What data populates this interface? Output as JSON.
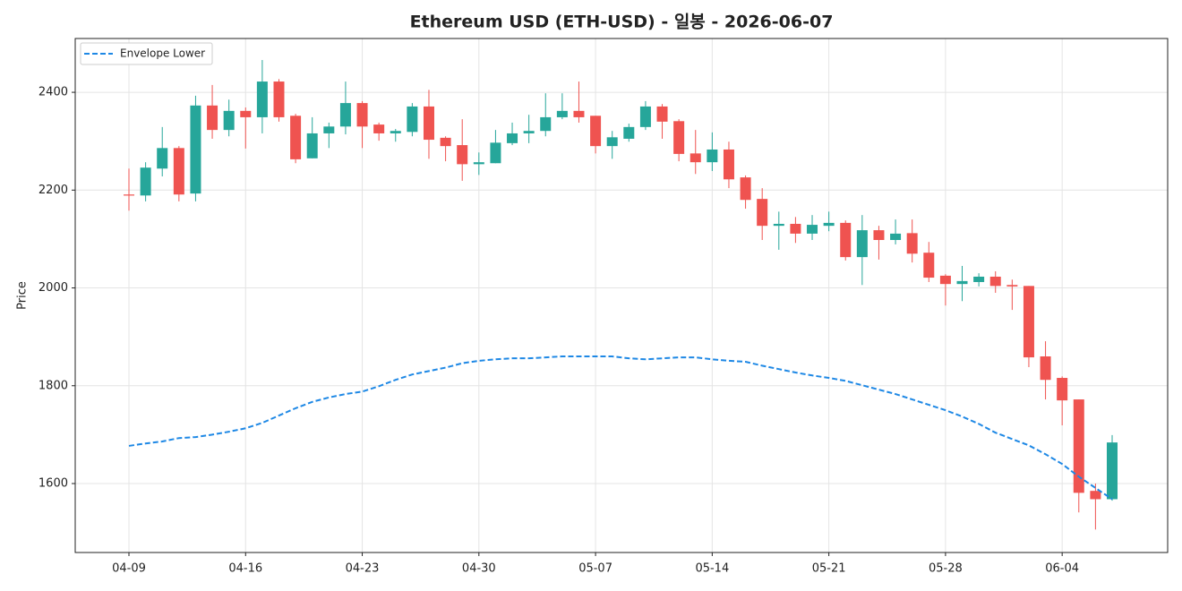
{
  "chart_data": {
    "type": "candlestick",
    "title": "Ethereum USD (ETH-USD) - 일봉 - 2026-06-07",
    "y_label": "Price",
    "categories": [
      "04-09",
      "04-10",
      "04-11",
      "04-12",
      "04-13",
      "04-14",
      "04-15",
      "04-16",
      "04-17",
      "04-18",
      "04-19",
      "04-20",
      "04-21",
      "04-22",
      "04-23",
      "04-24",
      "04-25",
      "04-26",
      "04-27",
      "04-28",
      "04-29",
      "04-30",
      "05-01",
      "05-02",
      "05-03",
      "05-04",
      "05-05",
      "05-06",
      "05-07",
      "05-08",
      "05-09",
      "05-10",
      "05-11",
      "05-12",
      "05-13",
      "05-14",
      "05-15",
      "05-16",
      "05-17",
      "05-18",
      "05-19",
      "05-20",
      "05-21",
      "05-22",
      "05-23",
      "05-24",
      "05-25",
      "05-26",
      "05-27",
      "05-28",
      "05-29",
      "05-30",
      "05-31",
      "06-01",
      "06-02",
      "06-03",
      "06-04",
      "06-05",
      "06-06",
      "06-07"
    ],
    "open": [
      2191,
      2189,
      2244,
      2286,
      2193,
      2373,
      2323,
      2362,
      2349,
      2422,
      2352,
      2265,
      2316,
      2330,
      2378,
      2334,
      2316,
      2319,
      2371,
      2307,
      2292,
      2253,
      2255,
      2296,
      2316,
      2321,
      2349,
      2362,
      2352,
      2290,
      2305,
      2329,
      2371,
      2341,
      2275,
      2257,
      2283,
      2226,
      2182,
      2127,
      2131,
      2111,
      2127,
      2133,
      2063,
      2118,
      2098,
      2112,
      2072,
      2025,
      2008,
      2012,
      2023,
      2006,
      2004,
      1860,
      1816,
      1772,
      1585,
      1568
    ],
    "high": [
      2244,
      2257,
      2329,
      2290,
      2393,
      2415,
      2385,
      2369,
      2466,
      2427,
      2356,
      2349,
      2338,
      2422,
      2382,
      2338,
      2325,
      2378,
      2405,
      2310,
      2345,
      2277,
      2323,
      2338,
      2354,
      2398,
      2398,
      2422,
      2352,
      2321,
      2336,
      2382,
      2376,
      2345,
      2323,
      2318,
      2299,
      2230,
      2204,
      2156,
      2145,
      2149,
      2156,
      2138,
      2149,
      2127,
      2140,
      2140,
      2094,
      2028,
      2045,
      2030,
      2034,
      2017,
      2004,
      1891,
      1819,
      1772,
      1600,
      1699
    ],
    "low": [
      2158,
      2177,
      2228,
      2177,
      2177,
      2305,
      2310,
      2285,
      2316,
      2340,
      2255,
      2265,
      2286,
      2314,
      2286,
      2301,
      2299,
      2310,
      2264,
      2259,
      2219,
      2231,
      2255,
      2292,
      2296,
      2310,
      2345,
      2338,
      2275,
      2264,
      2299,
      2323,
      2305,
      2259,
      2233,
      2239,
      2204,
      2162,
      2098,
      2078,
      2092,
      2098,
      2116,
      2056,
      2006,
      2058,
      2089,
      2052,
      2012,
      1964,
      1973,
      2003,
      1990,
      1955,
      1838,
      1772,
      1719,
      1541,
      1506,
      1565
    ],
    "close": [
      2189,
      2246,
      2286,
      2191,
      2373,
      2323,
      2362,
      2349,
      2422,
      2349,
      2263,
      2316,
      2330,
      2378,
      2330,
      2316,
      2321,
      2371,
      2303,
      2290,
      2253,
      2257,
      2297,
      2316,
      2321,
      2349,
      2362,
      2349,
      2290,
      2308,
      2329,
      2371,
      2340,
      2274,
      2257,
      2283,
      2222,
      2180,
      2127,
      2131,
      2111,
      2129,
      2133,
      2063,
      2118,
      2098,
      2111,
      2070,
      2021,
      2008,
      2014,
      2023,
      2004,
      2003,
      1858,
      1812,
      1770,
      1581,
      1568,
      1684
    ],
    "up_color": "#26a69a",
    "down_color": "#ef5350",
    "series": [
      {
        "name": "Envelope Lower",
        "color": "#1e88e5",
        "dashed": true,
        "values": [
          1677,
          1682,
          1686,
          1693,
          1695,
          1700,
          1706,
          1713,
          1724,
          1739,
          1754,
          1767,
          1776,
          1783,
          1788,
          1799,
          1812,
          1823,
          1830,
          1837,
          1846,
          1851,
          1854,
          1856,
          1856,
          1858,
          1860,
          1860,
          1860,
          1860,
          1856,
          1854,
          1856,
          1858,
          1858,
          1854,
          1851,
          1849,
          1841,
          1834,
          1827,
          1821,
          1816,
          1810,
          1801,
          1792,
          1783,
          1772,
          1761,
          1750,
          1737,
          1722,
          1704,
          1691,
          1678,
          1660,
          1640,
          1614,
          1591,
          1568
        ]
      }
    ],
    "ylim": [
      1459,
      2510
    ],
    "yticks": [
      1600,
      1800,
      2000,
      2200,
      2400
    ],
    "xticks": [
      "04-09",
      "04-16",
      "04-23",
      "04-30",
      "05-07",
      "05-14",
      "05-21",
      "05-28",
      "06-04"
    ],
    "grid": true,
    "legend": "upper left"
  }
}
